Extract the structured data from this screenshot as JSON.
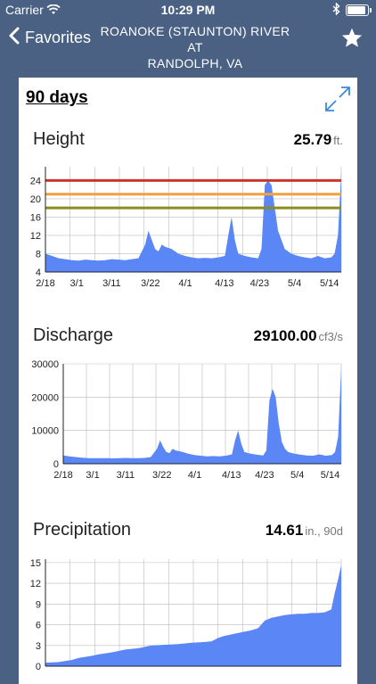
{
  "status_bar": {
    "carrier": "Carrier",
    "time": "10:29 PM"
  },
  "nav": {
    "back_label": "Favorites",
    "title_line1": "ROANOKE (STAUNTON) RIVER AT",
    "title_line2": "RANDOLPH, VA"
  },
  "card": {
    "range_label": "90 days"
  },
  "colors": {
    "fill": "#5b86f5",
    "threshold_red": "#c8372a",
    "threshold_orange": "#f0a040",
    "threshold_olive": "#8c8c20"
  },
  "sections": {
    "height": {
      "title": "Height",
      "value": "25.79",
      "unit": "ft."
    },
    "discharge": {
      "title": "Discharge",
      "value": "29100.00",
      "unit": "cf3/s"
    },
    "precipitation": {
      "title": "Precipitation",
      "value": "14.61",
      "unit": "in., 90d"
    }
  },
  "chart_data": [
    {
      "type": "area",
      "title": "Height",
      "unit": "ft.",
      "x_tick_labels": [
        "2/18",
        "3/1",
        "3/11",
        "3/22",
        "4/1",
        "4/13",
        "4/23",
        "5/4",
        "5/14"
      ],
      "y_ticks": [
        4,
        8,
        12,
        16,
        20,
        24
      ],
      "ylim": [
        4,
        27
      ],
      "thresholds": [
        24,
        21,
        18
      ],
      "grid": true,
      "x_days": [
        0,
        2,
        4,
        6,
        8,
        10,
        12,
        14,
        16,
        18,
        20,
        22,
        24,
        26,
        28,
        30,
        31,
        32,
        33,
        34,
        35,
        36,
        38,
        40,
        42,
        44,
        46,
        48,
        50,
        52,
        54,
        55,
        56,
        57,
        58,
        60,
        62,
        64,
        65,
        66,
        67,
        68,
        69,
        70,
        71,
        72,
        74,
        76,
        78,
        80,
        82,
        84,
        86,
        87,
        88,
        89
      ],
      "values": [
        8,
        7.5,
        7,
        6.8,
        6.6,
        6.5,
        6.7,
        6.6,
        6.5,
        6.6,
        6.8,
        6.7,
        6.6,
        6.8,
        7,
        10,
        13,
        11,
        9,
        8.5,
        10,
        9.5,
        9,
        8,
        7.5,
        7.2,
        7,
        7.1,
        7,
        7.2,
        7.5,
        12,
        16,
        11,
        8,
        7.5,
        7.2,
        7,
        9,
        23,
        24,
        23,
        18,
        13,
        11,
        9,
        8,
        7.5,
        7.2,
        7,
        7.5,
        7,
        7.2,
        8,
        12,
        25.79
      ]
    },
    {
      "type": "area",
      "title": "Discharge",
      "unit": "cf3/s",
      "x_tick_labels": [
        "2/18",
        "3/1",
        "3/11",
        "3/22",
        "4/1",
        "4/13",
        "4/23",
        "5/4",
        "5/14"
      ],
      "y_ticks": [
        0,
        10000,
        20000,
        30000
      ],
      "ylim": [
        0,
        30000
      ],
      "grid": true,
      "x_days": [
        0,
        2,
        4,
        6,
        8,
        10,
        12,
        14,
        16,
        18,
        20,
        22,
        24,
        26,
        28,
        30,
        31,
        32,
        33,
        34,
        35,
        36,
        38,
        40,
        42,
        44,
        46,
        48,
        50,
        52,
        54,
        55,
        56,
        57,
        58,
        60,
        62,
        64,
        65,
        66,
        67,
        68,
        69,
        70,
        71,
        72,
        74,
        76,
        78,
        80,
        82,
        84,
        86,
        87,
        88,
        89
      ],
      "values": [
        2500,
        2200,
        2000,
        1800,
        1700,
        1650,
        1700,
        1650,
        1600,
        1650,
        1750,
        1700,
        1650,
        1750,
        2000,
        4500,
        7000,
        5000,
        3500,
        3200,
        4500,
        4000,
        3600,
        3000,
        2600,
        2400,
        2200,
        2300,
        2200,
        2400,
        2800,
        7000,
        10000,
        6000,
        3500,
        3000,
        2700,
        2500,
        4000,
        19000,
        22500,
        20000,
        12000,
        6500,
        4500,
        3500,
        3000,
        2700,
        2500,
        2400,
        2800,
        2400,
        2600,
        3500,
        8000,
        29100
      ]
    },
    {
      "type": "area",
      "title": "Precipitation",
      "unit": "in., 90d",
      "x_tick_labels": [
        "2/18",
        "3/1",
        "3/11",
        "3/22",
        "4/1",
        "4/13",
        "4/23",
        "5/4",
        "5/14"
      ],
      "y_ticks": [
        0,
        3,
        6,
        9,
        12,
        15
      ],
      "ylim": [
        0,
        15.5
      ],
      "grid": true,
      "x_days": [
        0,
        4,
        8,
        10,
        14,
        16,
        20,
        22,
        24,
        28,
        30,
        32,
        36,
        40,
        44,
        48,
        50,
        52,
        54,
        56,
        58,
        60,
        62,
        64,
        66,
        68,
        70,
        72,
        74,
        76,
        78,
        80,
        82,
        84,
        86,
        87,
        88,
        89
      ],
      "values": [
        0.5,
        0.6,
        0.9,
        1.2,
        1.5,
        1.7,
        2.0,
        2.2,
        2.4,
        2.6,
        2.8,
        3.0,
        3.1,
        3.2,
        3.4,
        3.5,
        3.6,
        4.1,
        4.4,
        4.6,
        4.8,
        5.0,
        5.2,
        5.5,
        6.6,
        7.0,
        7.2,
        7.4,
        7.5,
        7.6,
        7.6,
        7.7,
        7.7,
        7.8,
        8.2,
        10.5,
        12.5,
        14.61
      ]
    }
  ]
}
